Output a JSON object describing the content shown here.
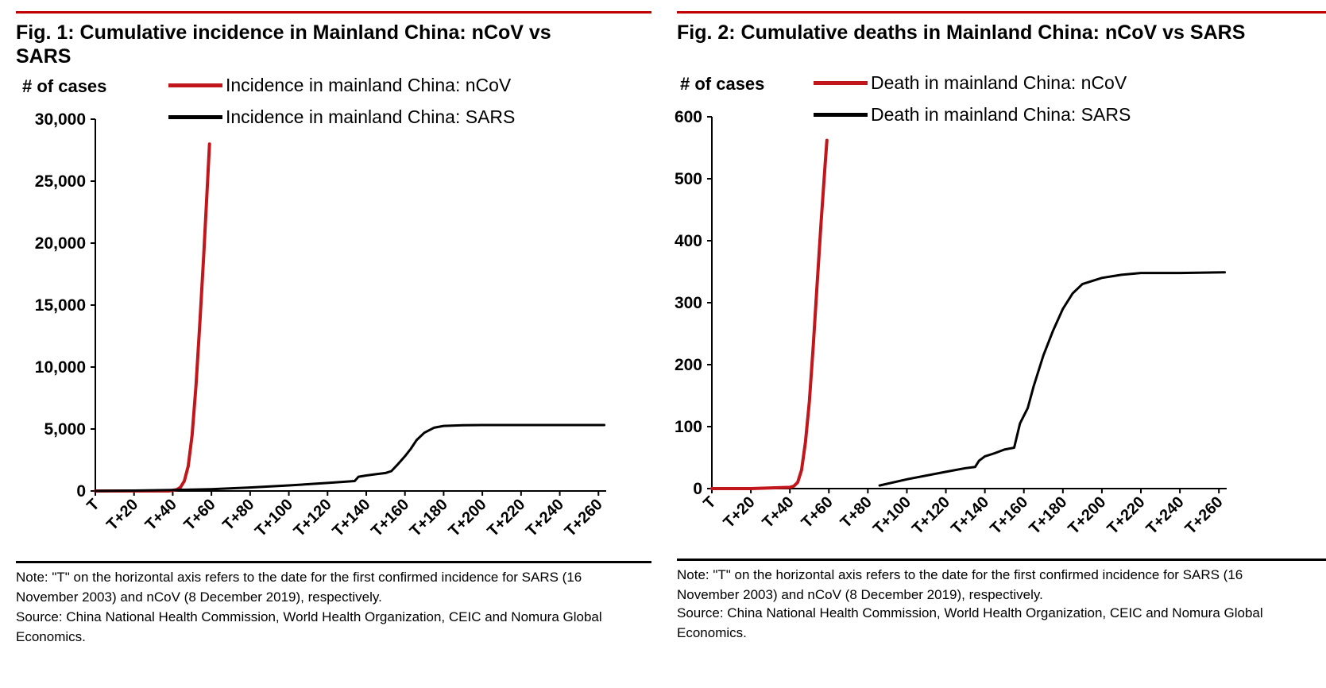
{
  "colors": {
    "ncov": "#c0161c",
    "sars": "#000000",
    "rule": "#c00000"
  },
  "charts": [
    {
      "title": "Fig. 1: Cumulative incidence in Mainland China: nCoV vs SARS",
      "ylabel": "# of cases",
      "legend": [
        "Incidence in mainland China: nCoV",
        "Incidence in mainland China: SARS"
      ],
      "note": "Note: \"T\" on the horizontal axis refers to the date for the first confirmed incidence for SARS (16 November 2003) and nCoV (8 December 2019), respectively.",
      "source": "Source: China National Health Commission, World Health Organization, CEIC and Nomura Global Economics."
    },
    {
      "title": "Fig. 2: Cumulative deaths in Mainland China: nCoV vs SARS",
      "ylabel": "# of cases",
      "legend": [
        "Death in mainland China: nCoV",
        "Death in mainland China: SARS"
      ],
      "note": "Note: \"T\" on the horizontal axis refers to the date for the first confirmed incidence for SARS (16 November 2003) and nCoV (8 December 2019), respectively.",
      "source": "Source: China National Health Commission, World Health Organization, CEIC and Nomura Global Economics."
    }
  ],
  "chart_data": [
    {
      "type": "line",
      "title": "Fig. 1: Cumulative incidence in Mainland China: nCoV vs SARS",
      "ylabel": "# of cases",
      "xlabel": "",
      "xlim": [
        0,
        264
      ],
      "ylim": [
        0,
        30000
      ],
      "yticks": [
        0,
        5000,
        10000,
        15000,
        20000,
        25000,
        30000
      ],
      "ytick_labels": [
        "0",
        "5,000",
        "10,000",
        "15,000",
        "20,000",
        "25,000",
        "30,000"
      ],
      "xticks": [
        0,
        20,
        40,
        60,
        80,
        100,
        120,
        140,
        160,
        180,
        200,
        220,
        240,
        260
      ],
      "xtick_labels": [
        "T",
        "T+20",
        "T+40",
        "T+60",
        "T+80",
        "T+100",
        "T+120",
        "T+140",
        "T+160",
        "T+180",
        "T+200",
        "T+220",
        "T+240",
        "T+260"
      ],
      "grid": false,
      "legend_position": "top",
      "series": [
        {
          "name": "Incidence in mainland China: nCoV",
          "color": "#c0161c",
          "x": [
            0,
            20,
            38,
            42,
            44,
            46,
            48,
            50,
            52,
            54,
            56,
            58,
            59
          ],
          "y": [
            0,
            0,
            0,
            100,
            300,
            800,
            2000,
            4500,
            8500,
            13500,
            19000,
            25000,
            28000
          ]
        },
        {
          "name": "Incidence in mainland China: SARS",
          "color": "#000000",
          "x": [
            0,
            20,
            40,
            60,
            80,
            100,
            120,
            134,
            136,
            140,
            145,
            150,
            153,
            156,
            160,
            163,
            166,
            170,
            175,
            180,
            190,
            200,
            220,
            240,
            263
          ],
          "y": [
            0,
            30,
            80,
            150,
            280,
            450,
            650,
            800,
            1150,
            1250,
            1350,
            1450,
            1600,
            2100,
            2800,
            3400,
            4100,
            4700,
            5100,
            5250,
            5300,
            5320,
            5320,
            5320,
            5320
          ]
        }
      ]
    },
    {
      "type": "line",
      "title": "Fig. 2: Cumulative deaths in Mainland China: nCoV vs SARS",
      "ylabel": "# of cases",
      "xlabel": "",
      "xlim": [
        0,
        264
      ],
      "ylim": [
        0,
        600
      ],
      "yticks": [
        0,
        100,
        200,
        300,
        400,
        500,
        600
      ],
      "ytick_labels": [
        "0",
        "100",
        "200",
        "300",
        "400",
        "500",
        "600"
      ],
      "xticks": [
        0,
        20,
        40,
        60,
        80,
        100,
        120,
        140,
        160,
        180,
        200,
        220,
        240,
        260
      ],
      "xtick_labels": [
        "T",
        "T+20",
        "T+40",
        "T+60",
        "T+80",
        "T+100",
        "T+120",
        "T+140",
        "T+160",
        "T+180",
        "T+200",
        "T+220",
        "T+240",
        "T+260"
      ],
      "grid": false,
      "legend_position": "top",
      "series": [
        {
          "name": "Death in mainland China: nCoV",
          "color": "#c0161c",
          "x": [
            0,
            20,
            40,
            42,
            44,
            46,
            48,
            50,
            52,
            54,
            56,
            58,
            59
          ],
          "y": [
            0,
            0,
            2,
            4,
            10,
            30,
            75,
            140,
            230,
            330,
            430,
            520,
            562
          ]
        },
        {
          "name": "Death in mainland China: SARS",
          "color": "#000000",
          "x": [
            86,
            100,
            120,
            130,
            135,
            137,
            140,
            145,
            150,
            155,
            158,
            162,
            165,
            170,
            175,
            180,
            185,
            190,
            195,
            200,
            210,
            220,
            240,
            263
          ],
          "y": [
            5,
            15,
            27,
            33,
            35,
            45,
            52,
            57,
            63,
            66,
            105,
            130,
            165,
            215,
            255,
            290,
            315,
            330,
            335,
            340,
            345,
            348,
            348,
            349
          ]
        }
      ]
    }
  ]
}
